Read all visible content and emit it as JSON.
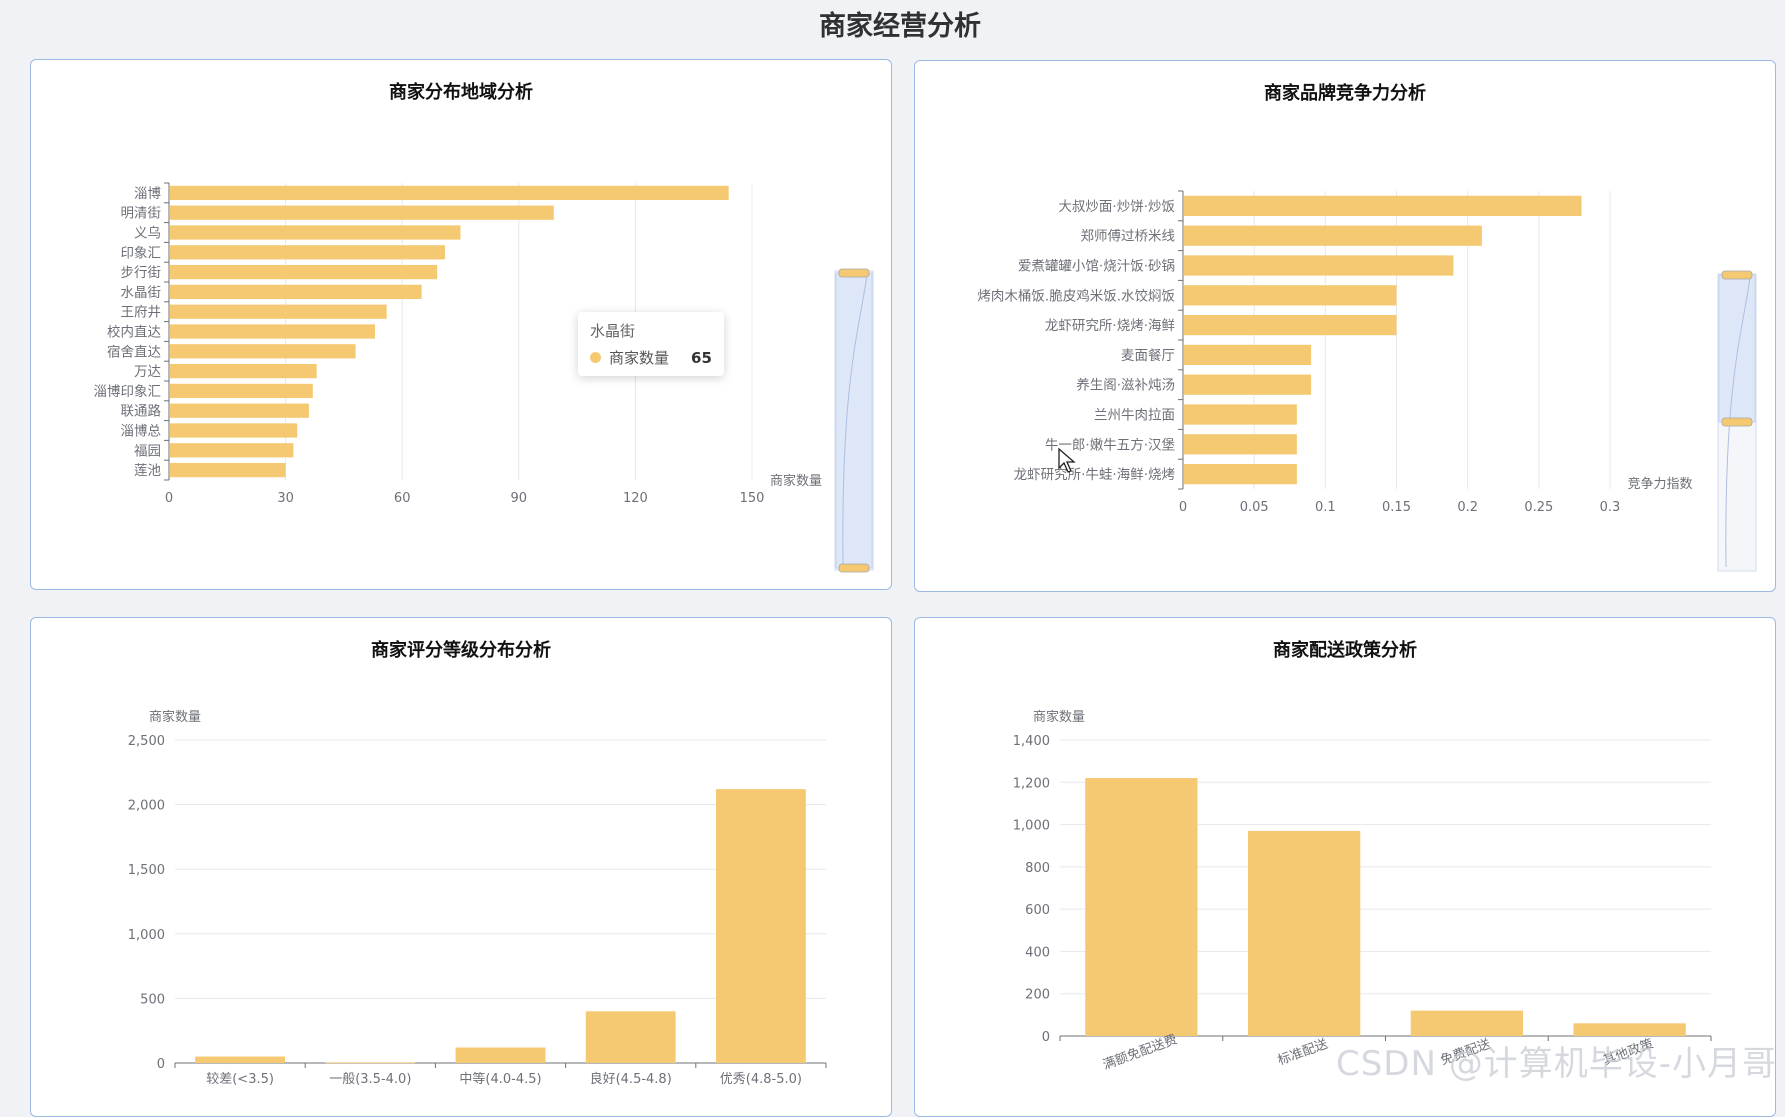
{
  "page": {
    "title": "商家经营分析"
  },
  "colors": {
    "bar": "#f5c972",
    "axis": "#6e7079",
    "grid": "#e6e8ec",
    "tick": "#6e7079"
  },
  "charts": [
    {
      "id": "region",
      "title": "商家分布地域分析",
      "chart_data": {
        "type": "bar",
        "orientation": "horizontal",
        "categories": [
          "淄博",
          "明清街",
          "义乌",
          "印象汇",
          "步行街",
          "水晶街",
          "王府井",
          "校内直达",
          "宿舍直达",
          "万达",
          "淄博印象汇",
          "联通路",
          "淄博总",
          "福园",
          "莲池"
        ],
        "values": [
          144,
          99,
          75,
          71,
          69,
          65,
          56,
          53,
          48,
          38,
          37,
          36,
          33,
          32,
          30
        ],
        "xlabel": "商家数量",
        "xlim": [
          0,
          150
        ],
        "xticks": [
          0,
          30,
          60,
          90,
          120,
          150
        ],
        "grid": true,
        "datazoom": "vertical slider on right"
      },
      "tooltip": {
        "title": "水晶街",
        "series": "商家数量",
        "value": "65"
      }
    },
    {
      "id": "brand",
      "title": "商家品牌竞争力分析",
      "chart_data": {
        "type": "bar",
        "orientation": "horizontal",
        "categories": [
          "大叔炒面·炒饼·炒饭",
          "郑师傅过桥米线",
          "爱煮罐罐小馆·烧汁饭·砂锅",
          "烤肉木桶饭.脆皮鸡米饭.水饺焖饭",
          "龙虾研究所·烧烤·海鲜",
          "麦面餐厅",
          "养生阁·滋补炖汤",
          "兰州牛肉拉面",
          "牛一郎·嫩牛五方·汉堡",
          "龙虾研究所·牛蛙·海鲜·烧烤"
        ],
        "values": [
          0.28,
          0.21,
          0.19,
          0.15,
          0.15,
          0.09,
          0.09,
          0.08,
          0.08,
          0.08
        ],
        "xlabel": "竞争力指数",
        "xlim": [
          0,
          0.3
        ],
        "xticks": [
          "0",
          "0.05",
          "0.1",
          "0.15",
          "0.2",
          "0.25",
          "0.3"
        ],
        "grid": true,
        "datazoom": "vertical slider on right"
      }
    },
    {
      "id": "rating",
      "title": "商家评分等级分布分析",
      "chart_data": {
        "type": "bar",
        "categories": [
          "较差(<3.5)",
          "一般(3.5-4.0)",
          "中等(4.0-4.5)",
          "良好(4.5-4.8)",
          "优秀(4.8-5.0)"
        ],
        "values": [
          50,
          5,
          120,
          400,
          2120
        ],
        "ylabel": "商家数量",
        "ylim": [
          0,
          2500
        ],
        "yticks": [
          "0",
          "500",
          "1,000",
          "1,500",
          "2,000",
          "2,500"
        ],
        "grid": true
      }
    },
    {
      "id": "delivery",
      "title": "商家配送政策分析",
      "chart_data": {
        "type": "bar",
        "categories": [
          "满额免配送费",
          "标准配送",
          "免费配送",
          "其他政策"
        ],
        "values": [
          1220,
          970,
          120,
          60
        ],
        "ylabel": "商家数量",
        "ylim": [
          0,
          1400
        ],
        "yticks": [
          "0",
          "200",
          "400",
          "600",
          "800",
          "1,000",
          "1,200",
          "1,400"
        ],
        "grid": true,
        "xlabel_rotation": "rotated"
      }
    }
  ],
  "watermark": "CSDN @计算机毕设-小月哥"
}
